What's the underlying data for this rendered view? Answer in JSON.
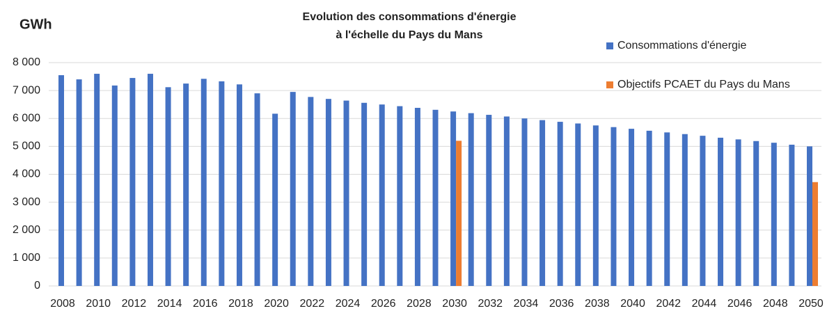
{
  "chart_data": {
    "type": "bar",
    "title": [
      "Evolution des consommations d'énergie",
      "à l'échelle du Pays du Mans"
    ],
    "y_label": "GWh",
    "categories": [
      "2008",
      null,
      "2010",
      null,
      "2012",
      null,
      "2014",
      null,
      "2016",
      null,
      "2018",
      null,
      "2020",
      null,
      "2022",
      null,
      "2024",
      null,
      "2026",
      null,
      "2028",
      null,
      "2030",
      null,
      "2032",
      null,
      "2034",
      null,
      "2036",
      null,
      "2038",
      null,
      "2040",
      null,
      "2042",
      null,
      "2044",
      null,
      "2046",
      null,
      "2048",
      null,
      "2050"
    ],
    "series": [
      {
        "name": "Consommations d'énergie",
        "color": "#4472c4",
        "values": [
          7550,
          7400,
          7600,
          7180,
          7450,
          7600,
          7120,
          7250,
          7420,
          7330,
          7220,
          6900,
          6170,
          6950,
          6770,
          6700,
          6640,
          6560,
          6500,
          6440,
          6380,
          6310,
          6250,
          6190,
          6130,
          6070,
          6000,
          5940,
          5880,
          5820,
          5750,
          5690,
          5630,
          5560,
          5500,
          5440,
          5380,
          5310,
          5250,
          5190,
          5130,
          5060,
          5000
        ]
      },
      {
        "name": "Objectifs PCAET du Pays du Mans",
        "color": "#ed7d31",
        "values": [
          null,
          null,
          null,
          null,
          null,
          null,
          null,
          null,
          null,
          null,
          null,
          null,
          null,
          null,
          null,
          null,
          null,
          null,
          null,
          null,
          null,
          null,
          5200,
          null,
          null,
          null,
          null,
          null,
          null,
          null,
          null,
          null,
          null,
          null,
          null,
          null,
          null,
          null,
          null,
          null,
          null,
          null,
          3720
        ]
      }
    ],
    "ylim": [
      0,
      8000
    ],
    "yticks": [
      0,
      {
        "value": 1000,
        "label": "1 000"
      },
      {
        "value": 2000,
        "label": "2 000"
      },
      {
        "value": 3000,
        "label": "3 000"
      },
      {
        "value": 4000,
        "label": "4 000"
      },
      {
        "value": 5000,
        "label": "5 000"
      },
      {
        "value": 6000,
        "label": "6 000"
      },
      {
        "value": 7000,
        "label": "7 000"
      },
      {
        "value": 8000,
        "label": "8 000"
      }
    ],
    "grid": true,
    "legend": "right"
  }
}
